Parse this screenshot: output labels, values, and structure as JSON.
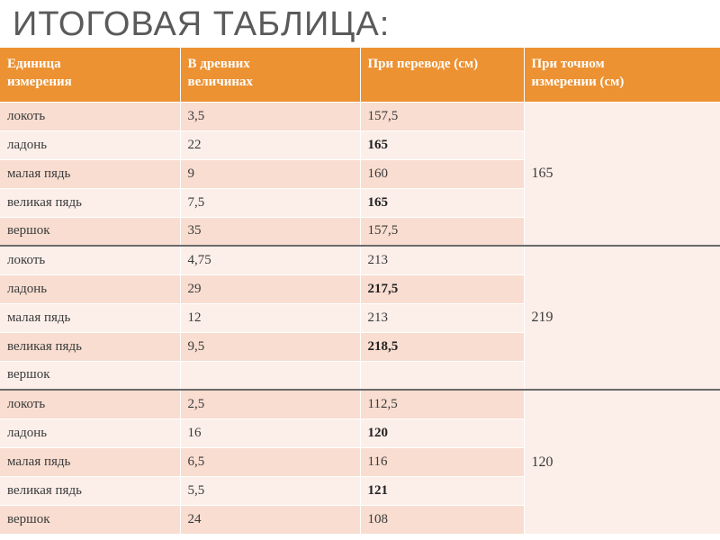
{
  "title": "ИТОГОВАЯ ТАБЛИЦА:",
  "colors": {
    "header_bg": "#ec9233",
    "row_dark": "#f8ddd0",
    "row_light": "#fcefe9",
    "title_color": "#5a5a5a"
  },
  "table": {
    "headers": [
      {
        "line1": "Единица",
        "line2": "измерения"
      },
      {
        "line1": "В древних",
        "line2": "величинах"
      },
      {
        "line1": "При переводе (см)",
        "line2": ""
      },
      {
        "line1": "При точном",
        "line2": "измерении  (см)"
      }
    ],
    "groups": [
      {
        "exact": "165",
        "rows": [
          {
            "unit": "локоть",
            "ancient": "3,5",
            "converted": "157,5"
          },
          {
            "unit": "ладонь",
            "ancient": "22",
            "converted": "165"
          },
          {
            "unit": "малая пядь",
            "ancient": "9",
            "converted": "160"
          },
          {
            "unit": "великая пядь",
            "ancient": "7,5",
            "converted": "165"
          },
          {
            "unit": "вершок",
            "ancient": "35",
            "converted": "157,5"
          }
        ]
      },
      {
        "exact": "219",
        "rows": [
          {
            "unit": "локоть",
            "ancient": "4,75",
            "converted": "213"
          },
          {
            "unit": "ладонь",
            "ancient": "29",
            "converted": "217,5"
          },
          {
            "unit": "малая пядь",
            "ancient": "12",
            "converted": "213"
          },
          {
            "unit": "великая пядь",
            "ancient": "9,5",
            "converted": "218,5"
          },
          {
            "unit": "вершок",
            "ancient": "",
            "converted": ""
          }
        ]
      },
      {
        "exact": "120",
        "rows": [
          {
            "unit": "локоть",
            "ancient": "2,5",
            "converted": "112,5"
          },
          {
            "unit": "ладонь",
            "ancient": "16",
            "converted": "120"
          },
          {
            "unit": "малая пядь",
            "ancient": "6,5",
            "converted": "116"
          },
          {
            "unit": "великая пядь",
            "ancient": "5,5",
            "converted": "121"
          },
          {
            "unit": "вершок",
            "ancient": "24",
            "converted": "108"
          }
        ]
      }
    ]
  }
}
